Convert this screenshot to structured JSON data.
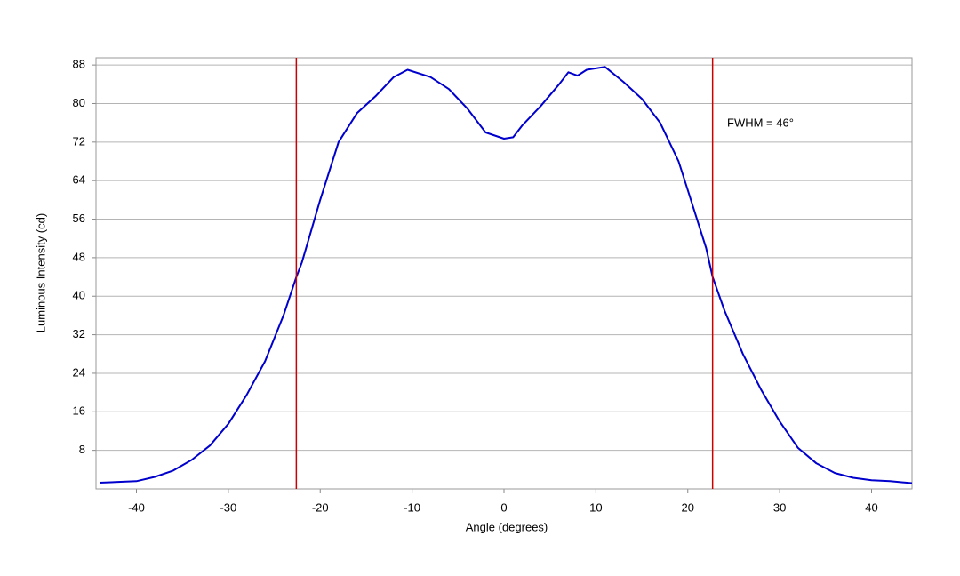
{
  "chart_data": {
    "type": "line",
    "x_label": "Angle (degrees)",
    "y_label": "Luminous Intensity (cd)",
    "annotation": "FWHM = 46°",
    "x": [
      -44,
      -40,
      -38,
      -36,
      -34,
      -32,
      -30,
      -28,
      -26,
      -24,
      -22.6,
      -22,
      -20,
      -18,
      -16,
      -14,
      -12,
      -10.5,
      -8,
      -6,
      -4,
      -2,
      0,
      1,
      2,
      4,
      6,
      7,
      8,
      9,
      11,
      13,
      15,
      17,
      19,
      20,
      22,
      22.7,
      24,
      26,
      28,
      30,
      32,
      34,
      36,
      38,
      40,
      42,
      44.4
    ],
    "series": [
      {
        "color": "#0000cc",
        "values": [
          1.3,
          1.6,
          2.5,
          3.8,
          6,
          9,
          13.5,
          19.5,
          26.5,
          36,
          44,
          47,
          60,
          72,
          78,
          81.5,
          85.5,
          87,
          85.5,
          83,
          79,
          74,
          72.7,
          73,
          75.5,
          79.5,
          84,
          86.5,
          85.8,
          87,
          87.6,
          84.5,
          81,
          76,
          68,
          62,
          50,
          44,
          37,
          28,
          20.5,
          14,
          8.5,
          5.3,
          3.3,
          2.3,
          1.8,
          1.6,
          1.2
        ]
      }
    ],
    "vlines": [
      {
        "x": -22.6,
        "color": "#cc0000"
      },
      {
        "x": 22.7,
        "color": "#cc0000"
      }
    ],
    "xlim": [
      -44.4,
      44.4
    ],
    "ylim": [
      0,
      89.5
    ],
    "xticks": [
      -40,
      -30,
      -20,
      -10,
      0,
      10,
      20,
      30,
      40
    ],
    "yticks": [
      8,
      16,
      24,
      32,
      40,
      48,
      56,
      64,
      72,
      80,
      88
    ],
    "grid": true
  }
}
